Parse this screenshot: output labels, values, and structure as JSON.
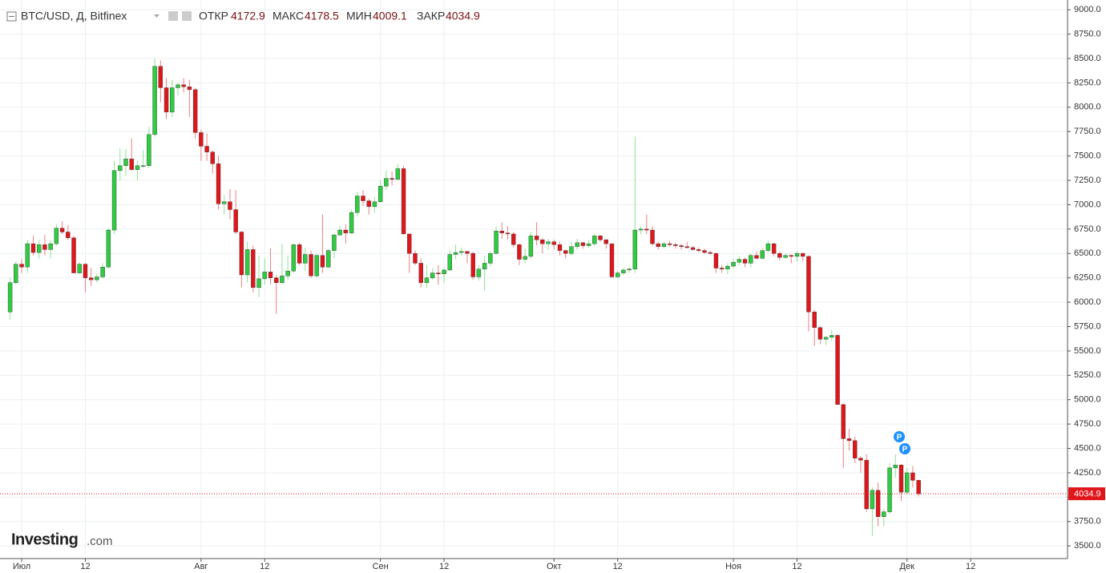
{
  "header": {
    "symbol": "BTC/USD, Д, Bitfinex",
    "open_label": "ОТКР",
    "high_label": "МАКС",
    "low_label": "МИН",
    "close_label": "ЗАКР"
  },
  "logo": {
    "name": "Investing",
    "suffix": ".com"
  },
  "markers": [
    "P",
    "P"
  ],
  "chart_data": {
    "type": "candlestick",
    "up_color": "#2ecc40",
    "down_color": "#e0161b",
    "grid": true,
    "ylim": [
      3370,
      9100
    ],
    "yticks": [
      {
        "value": 3500,
        "label": "3500.0"
      },
      {
        "value": 3750,
        "label": "3750.0"
      },
      {
        "value": 4000,
        "label": "4000.0"
      },
      {
        "value": 4250,
        "label": "4250.0"
      },
      {
        "value": 4500,
        "label": "4500.0"
      },
      {
        "value": 4750,
        "label": "4750.0"
      },
      {
        "value": 5000,
        "label": "5000.0"
      },
      {
        "value": 5250,
        "label": "5250.0"
      },
      {
        "value": 5500,
        "label": "5500.0"
      },
      {
        "value": 5750,
        "label": "5750.0"
      },
      {
        "value": 6000,
        "label": "6000.0"
      },
      {
        "value": 6250,
        "label": "6250.0"
      },
      {
        "value": 6500,
        "label": "6500.0"
      },
      {
        "value": 6750,
        "label": "6750.0"
      },
      {
        "value": 7000,
        "label": "7000.0"
      },
      {
        "value": 7250,
        "label": "7250.0"
      },
      {
        "value": 7500,
        "label": "7500.0"
      },
      {
        "value": 7750,
        "label": "7750.0"
      },
      {
        "value": 8000,
        "label": "8000.0"
      },
      {
        "value": 8250,
        "label": "8250.0"
      },
      {
        "value": 8500,
        "label": "8500.0"
      },
      {
        "value": 8750,
        "label": "8750.0"
      },
      {
        "value": 9000,
        "label": "9000.0"
      }
    ],
    "categories": [
      null,
      null,
      "Июл",
      null,
      null,
      null,
      null,
      null,
      null,
      null,
      null,
      null,
      null,
      "12",
      null,
      null,
      null,
      null,
      null,
      null,
      null,
      null,
      null,
      null,
      null,
      null,
      null,
      null,
      null,
      null,
      null,
      null,
      null,
      "Авг",
      null,
      null,
      null,
      null,
      null,
      null,
      null,
      null,
      null,
      null,
      "12",
      null,
      null,
      null,
      null,
      null,
      null,
      null,
      null,
      null,
      null,
      null,
      null,
      null,
      null,
      null,
      null,
      null,
      null,
      null,
      "Сен",
      null,
      null,
      null,
      null,
      null,
      null,
      null,
      null,
      null,
      null,
      "12",
      null,
      null,
      null,
      null,
      null,
      null,
      null,
      null,
      null,
      null,
      null,
      null,
      null,
      null,
      null,
      null,
      null,
      null,
      "Окт",
      null,
      null,
      null,
      null,
      null,
      null,
      null,
      null,
      null,
      null,
      "12",
      null,
      null,
      null,
      null,
      null,
      null,
      null,
      null,
      null,
      null,
      null,
      null,
      null,
      null,
      null,
      null,
      null,
      null,
      null,
      "Ноя",
      null,
      null,
      null,
      null,
      null,
      null,
      null,
      null,
      null,
      null,
      "12",
      null,
      null,
      null,
      null,
      null,
      null,
      null,
      null,
      null,
      null,
      null,
      null,
      null,
      null,
      null,
      null,
      null,
      null,
      "Дек",
      null,
      null,
      null,
      null,
      null,
      null,
      null,
      null,
      null,
      null,
      "12",
      null,
      null,
      null,
      null,
      null,
      null,
      null,
      null,
      null,
      null,
      null,
      null,
      null,
      null,
      null,
      null
    ],
    "open": [
      5900,
      6200,
      6390,
      6360,
      6600,
      6510,
      6590,
      6540,
      6600,
      6760,
      6720,
      6660,
      6300,
      6390,
      6250,
      6230,
      6260,
      6360,
      6740,
      7350,
      7400,
      7470,
      7360,
      7400,
      7400,
      7720,
      8420,
      8200,
      7950,
      8200,
      8230,
      8210,
      8180,
      7740,
      7600,
      7540,
      7420,
      7010,
      7030,
      6950,
      6720,
      6280,
      6540,
      6150,
      6240,
      6310,
      6250,
      6200,
      6270,
      6320,
      6590,
      6400,
      6490,
      6270,
      6480,
      6360,
      6530,
      6690,
      6740,
      6710,
      6920,
      7090,
      7040,
      6980,
      7030,
      7190,
      7270,
      7260,
      7370,
      6700,
      6500,
      6400,
      6200,
      6250,
      6300,
      6290,
      6330,
      6490,
      6510,
      6520,
      6500,
      6260,
      6340,
      6400,
      6500,
      6730,
      6710,
      6700,
      6590,
      6440,
      6470,
      6680,
      6640,
      6600,
      6620,
      6590,
      6530,
      6500,
      6570,
      6610,
      6580,
      6600,
      6680,
      6640,
      6600,
      6260,
      6300,
      6330,
      6340,
      6740,
      6750,
      6740,
      6600,
      6570,
      6600,
      6590,
      6580,
      6570,
      6560,
      6540,
      6530,
      6510,
      6500,
      6350,
      6340,
      6370,
      6410,
      6440,
      6400,
      6480,
      6450,
      6530,
      6600,
      6500,
      6460,
      6480,
      6470,
      6500,
      6470,
      5900,
      5740,
      5620,
      5640,
      5660,
      4950,
      4600,
      4580,
      4400,
      4380,
      3880,
      4070,
      3800,
      3850,
      4300,
      4330,
      4050,
      4250,
      4172.9,
      null,
      null,
      null,
      null,
      null,
      null,
      null,
      null,
      null,
      null,
      null,
      null,
      null,
      null,
      null,
      null,
      null,
      null,
      null,
      null,
      null,
      null,
      null,
      null,
      null
    ],
    "high": [
      6250,
      6420,
      6440,
      6640,
      6680,
      6640,
      6690,
      6640,
      6800,
      6830,
      6790,
      6680,
      6410,
      6400,
      6350,
      6300,
      6400,
      6760,
      7450,
      7580,
      7570,
      7680,
      7450,
      7560,
      7800,
      8500,
      8480,
      8300,
      8280,
      8250,
      8300,
      8280,
      8200,
      7770,
      7730,
      7560,
      7500,
      7100,
      7160,
      7150,
      6730,
      6620,
      6580,
      6480,
      6450,
      6550,
      6280,
      6600,
      6480,
      6600,
      6610,
      6560,
      6530,
      6500,
      6900,
      6550,
      6700,
      6780,
      6800,
      6950,
      7130,
      7150,
      7060,
      7080,
      7250,
      7350,
      7340,
      7420,
      7400,
      6700,
      6530,
      6450,
      6380,
      6350,
      6380,
      6350,
      6530,
      6590,
      6560,
      6530,
      6520,
      6380,
      6480,
      6520,
      6780,
      6820,
      6780,
      6720,
      6600,
      6550,
      6720,
      6820,
      6660,
      6650,
      6640,
      6620,
      6540,
      6620,
      6650,
      6620,
      6640,
      6700,
      6690,
      6650,
      6600,
      6320,
      6350,
      6360,
      7700,
      6780,
      6900,
      6780,
      6620,
      6620,
      6630,
      6610,
      6600,
      6620,
      6580,
      6560,
      6550,
      6530,
      6510,
      6380,
      6400,
      6440,
      6470,
      6460,
      6500,
      6520,
      6560,
      6630,
      6610,
      6520,
      6500,
      6490,
      6520,
      6510,
      6480,
      5920,
      5750,
      5650,
      5720,
      5670,
      4960,
      4700,
      4620,
      4420,
      4440,
      4100,
      4150,
      3880,
      4350,
      4440,
      4340,
      4300,
      4320,
      4178.5,
      null,
      null,
      null,
      null,
      null,
      null,
      null,
      null,
      null,
      null,
      null,
      null,
      null,
      null,
      null,
      null,
      null,
      null,
      null,
      null,
      null,
      null,
      null,
      null,
      null
    ],
    "low": [
      5820,
      6180,
      6300,
      6300,
      6480,
      6450,
      6480,
      6450,
      6580,
      6700,
      6640,
      6300,
      6290,
      6100,
      6170,
      6200,
      6240,
      6350,
      6700,
      7250,
      7300,
      7350,
      7250,
      7380,
      7380,
      7700,
      8050,
      7880,
      7900,
      8120,
      8150,
      7900,
      7680,
      7450,
      7450,
      7320,
      6950,
      6900,
      6850,
      6700,
      6150,
      6200,
      6100,
      6050,
      6180,
      6180,
      5880,
      6180,
      6230,
      6300,
      6380,
      6320,
      6250,
      6250,
      6300,
      6350,
      6450,
      6680,
      6600,
      6700,
      6880,
      6990,
      6900,
      6920,
      7020,
      7150,
      7200,
      7250,
      6700,
      6300,
      6380,
      6150,
      6150,
      6230,
      6180,
      6200,
      6320,
      6440,
      6480,
      6400,
      6230,
      6220,
      6120,
      6370,
      6490,
      6650,
      6640,
      6560,
      6380,
      6400,
      6440,
      6580,
      6500,
      6540,
      6540,
      6480,
      6450,
      6480,
      6540,
      6550,
      6560,
      6580,
      6620,
      6550,
      6250,
      6240,
      6280,
      6300,
      6300,
      6700,
      6700,
      6580,
      6540,
      6550,
      6570,
      6550,
      6540,
      6550,
      6530,
      6510,
      6500,
      6490,
      6300,
      6300,
      6290,
      6350,
      6380,
      6360,
      6360,
      6440,
      6440,
      6510,
      6470,
      6430,
      6440,
      6400,
      6420,
      6420,
      5700,
      5550,
      5570,
      5560,
      5600,
      4950,
      4300,
      4480,
      4350,
      4250,
      3850,
      3600,
      3700,
      3700,
      3830,
      4200,
      3960,
      4030,
      4100,
      4009.1,
      null,
      null,
      null,
      null,
      null,
      null,
      null,
      null,
      null,
      null,
      null,
      null,
      null,
      null,
      null,
      null,
      null,
      null,
      null,
      null,
      null,
      null,
      null,
      null,
      null
    ],
    "close": [
      6200,
      6390,
      6360,
      6600,
      6510,
      6590,
      6540,
      6600,
      6760,
      6720,
      6660,
      6300,
      6390,
      6250,
      6230,
      6260,
      6360,
      6740,
      7350,
      7400,
      7470,
      7360,
      7400,
      7400,
      7720,
      8420,
      8200,
      7950,
      8200,
      8230,
      8210,
      8180,
      7740,
      7600,
      7540,
      7420,
      7010,
      7030,
      6950,
      6720,
      6280,
      6540,
      6150,
      6240,
      6310,
      6250,
      6200,
      6270,
      6320,
      6590,
      6400,
      6490,
      6270,
      6480,
      6360,
      6530,
      6690,
      6740,
      6710,
      6920,
      7090,
      7040,
      6980,
      7030,
      7190,
      7270,
      7260,
      7370,
      6700,
      6500,
      6400,
      6200,
      6250,
      6300,
      6290,
      6330,
      6490,
      6510,
      6520,
      6500,
      6260,
      6340,
      6400,
      6500,
      6730,
      6710,
      6700,
      6590,
      6440,
      6470,
      6680,
      6640,
      6600,
      6620,
      6590,
      6530,
      6500,
      6570,
      6610,
      6580,
      6600,
      6680,
      6640,
      6600,
      6260,
      6300,
      6330,
      6340,
      6740,
      6750,
      6740,
      6600,
      6570,
      6600,
      6590,
      6580,
      6570,
      6560,
      6540,
      6530,
      6510,
      6500,
      6350,
      6340,
      6370,
      6410,
      6440,
      6400,
      6480,
      6450,
      6530,
      6600,
      6500,
      6460,
      6480,
      6470,
      6500,
      6470,
      5900,
      5740,
      5620,
      5640,
      5660,
      4950,
      4600,
      4580,
      4400,
      4380,
      3880,
      4070,
      3800,
      3850,
      4300,
      4330,
      4050,
      4250,
      4172.9,
      4034.9,
      null,
      null,
      null,
      null,
      null,
      null,
      null,
      null,
      null,
      null,
      null,
      null,
      null,
      null,
      null,
      null,
      null,
      null,
      null,
      null,
      null,
      null,
      null,
      null,
      null
    ]
  }
}
